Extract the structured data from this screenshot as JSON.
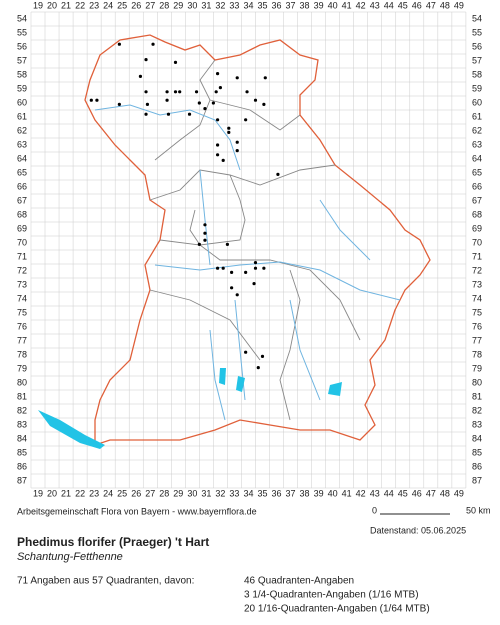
{
  "grid": {
    "columns": [
      19,
      20,
      21,
      22,
      23,
      24,
      25,
      26,
      27,
      28,
      29,
      30,
      31,
      32,
      33,
      34,
      35,
      36,
      37,
      38,
      39,
      40,
      41,
      42,
      43,
      44,
      45,
      46,
      47,
      48,
      49
    ],
    "rows": [
      54,
      55,
      56,
      57,
      58,
      59,
      60,
      61,
      62,
      63,
      64,
      65,
      66,
      67,
      68,
      69,
      70,
      71,
      72,
      73,
      74,
      75,
      76,
      77,
      78,
      79,
      80,
      81,
      82,
      83,
      84,
      85,
      86,
      87
    ]
  },
  "points": [
    [
      24.8,
      55.8
    ],
    [
      26.7,
      56.9
    ],
    [
      27.2,
      55.8
    ],
    [
      28.8,
      57.1
    ],
    [
      31.8,
      57.9
    ],
    [
      33.2,
      58.2
    ],
    [
      35.2,
      58.2
    ],
    [
      26.3,
      58.1
    ],
    [
      22.8,
      59.8
    ],
    [
      23.2,
      59.8
    ],
    [
      24.8,
      60.1
    ],
    [
      26.7,
      59.2
    ],
    [
      26.8,
      60.1
    ],
    [
      28.2,
      59.2
    ],
    [
      28.8,
      59.2
    ],
    [
      29.1,
      59.2
    ],
    [
      28.2,
      59.8
    ],
    [
      30.3,
      59.2
    ],
    [
      30.5,
      60.0
    ],
    [
      30.9,
      60.4
    ],
    [
      29.8,
      60.8
    ],
    [
      28.3,
      60.8
    ],
    [
      26.7,
      60.8
    ],
    [
      31.7,
      59.2
    ],
    [
      32.0,
      58.9
    ],
    [
      33.9,
      59.2
    ],
    [
      34.5,
      59.8
    ],
    [
      35.1,
      60.1
    ],
    [
      31.5,
      60.0
    ],
    [
      31.8,
      61.2
    ],
    [
      32.6,
      61.8
    ],
    [
      33.8,
      61.2
    ],
    [
      32.6,
      62.1
    ],
    [
      31.8,
      63.0
    ],
    [
      33.2,
      62.8
    ],
    [
      33.2,
      63.4
    ],
    [
      31.8,
      63.7
    ],
    [
      32.2,
      64.1
    ],
    [
      36.1,
      65.1
    ],
    [
      30.9,
      68.7
    ],
    [
      30.9,
      69.3
    ],
    [
      30.9,
      69.8
    ],
    [
      30.5,
      70.1
    ],
    [
      32.5,
      70.1
    ],
    [
      34.5,
      71.4
    ],
    [
      31.8,
      71.8
    ],
    [
      32.2,
      71.8
    ],
    [
      32.8,
      72.1
    ],
    [
      33.8,
      72.1
    ],
    [
      34.5,
      71.8
    ],
    [
      35.1,
      71.8
    ],
    [
      34.4,
      72.9
    ],
    [
      32.8,
      73.2
    ],
    [
      33.2,
      73.7
    ],
    [
      33.8,
      77.8
    ],
    [
      35.0,
      78.1
    ],
    [
      34.7,
      78.9
    ]
  ],
  "footer": {
    "credit": "Arbeitsgemeinschaft Flora von Bayern - www.bayernflora.de",
    "scale_start": "0",
    "scale_end": "50 km",
    "date": "Datenstand: 05.06.2025"
  },
  "species": {
    "name": "Phedimus florifer (Praeger) 't Hart",
    "common": "Schantung-Fetthenne"
  },
  "summary": {
    "total": "71 Angaben aus 57 Quadranten, davon:",
    "details": [
      "46 Quadranten-Angaben",
      "3 1/4-Quadranten-Angaben (1/16 MTB)",
      "20 1/16-Quadranten-Angaben (1/64 MTB)"
    ]
  }
}
